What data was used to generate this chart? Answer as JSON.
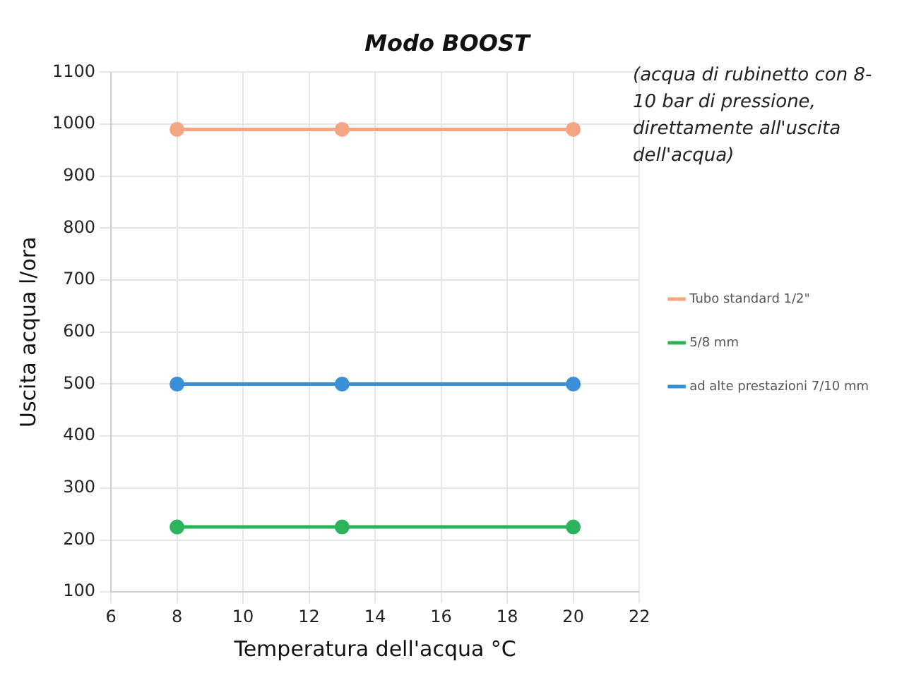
{
  "chart_data": {
    "type": "line",
    "title": "Modo BOOST",
    "xlabel": "Temperatura dell'acqua °C",
    "ylabel": "Uscita acqua l/ora",
    "annotations": [
      "(acqua di rubinetto con 8-10 bar di pressione, direttamente all'uscita dell'acqua)"
    ],
    "x": [
      8,
      13,
      20
    ],
    "series": [
      {
        "name": "Tubo standard 1/2\"",
        "color": "#f4a582",
        "values": [
          990,
          990,
          990
        ]
      },
      {
        "name": "5/8 mm",
        "color": "#2db35d",
        "values": [
          225,
          225,
          225
        ]
      },
      {
        "name": "ad alte prestazioni 7/10 mm",
        "color": "#3a8fd6",
        "values": [
          500,
          500,
          500
        ]
      }
    ],
    "xlim": [
      6,
      22
    ],
    "xticks": [
      6,
      8,
      10,
      12,
      14,
      16,
      18,
      20,
      22
    ],
    "ylim": [
      100,
      1100
    ],
    "yticks": [
      100,
      200,
      300,
      400,
      500,
      600,
      700,
      800,
      900,
      1000,
      1100
    ],
    "grid": true,
    "legend": "right",
    "marker": "circle",
    "line_style": "solid"
  }
}
